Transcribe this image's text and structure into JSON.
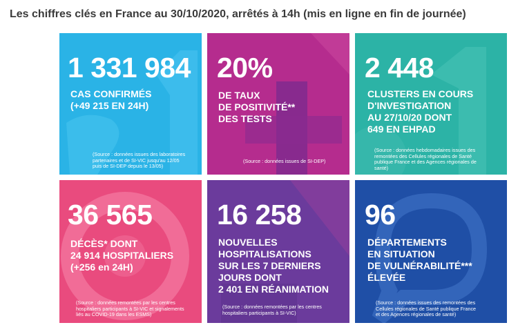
{
  "headline": "Les chiffres clés en France au 30/10/2020, arrêtés à 14h (mis en ligne en fin de journée)",
  "tiles": [
    {
      "id": "confirmed-cases",
      "color": "#2bb6e8",
      "number": "1 331 984",
      "lines": [
        "CAS CONFIRMÉS",
        "(+49 215 EN 24H)"
      ],
      "source": [
        "(Source : données issues des laboratoires",
        "partenaires et de SI-VIC jusqu'au 12/05",
        "puis de SI-DEP depuis le 13/05)"
      ]
    },
    {
      "id": "positivity-rate",
      "color": "#b52c8e",
      "number": "20%",
      "lines": [
        "DE TAUX",
        "DE POSITIVITÉ**",
        "DES TESTS"
      ],
      "source": [
        "(Source : données issues de SI-DEP)"
      ]
    },
    {
      "id": "clusters",
      "color": "#2cb3a6",
      "number": "2 448",
      "lines": [
        "CLUSTERS EN COURS",
        "D'INVESTIGATION",
        "AU 27/10/20 DONT",
        "649 EN EHPAD"
      ],
      "source": [
        "(Source : données hebdomadaires issues des",
        "remontées des Cellules régionales de Santé",
        "publique France et des Agences régionales de",
        "santé)"
      ]
    },
    {
      "id": "deaths",
      "color": "#e94b7e",
      "number": "36 565",
      "lines": [
        "DÉCÈS* DONT",
        "24 914 HOSPITALIERS",
        "(+256 en 24H)"
      ],
      "source": [
        "(Source : données remontées par les centres",
        "hospitaliers participants à SI-VIC et signalements",
        "liés au COVID-19 dans les ESMS)"
      ]
    },
    {
      "id": "hospitalisations",
      "color": "#6b3b9c",
      "number": "16 258",
      "lines": [
        "NOUVELLES",
        "HOSPITALISATIONS",
        "SUR LES 7 DERNIERS",
        "JOURS DONT",
        "2 401 EN RÉANIMATION"
      ],
      "source": [
        "(Source : données remontées par les centres",
        "hospitaliers participants à SI-VIC)"
      ]
    },
    {
      "id": "departments",
      "color": "#1f4fa6",
      "number": "96",
      "lines": [
        "DÉPARTEMENTS",
        "EN SITUATION",
        "DE VULNÉRABILITÉ***",
        "ÉLEVÉE"
      ],
      "source": [
        "(Source : données issues des remontées des",
        "Cellules régionales de Santé publique France",
        "et des Agences régionales de santé)"
      ]
    }
  ]
}
